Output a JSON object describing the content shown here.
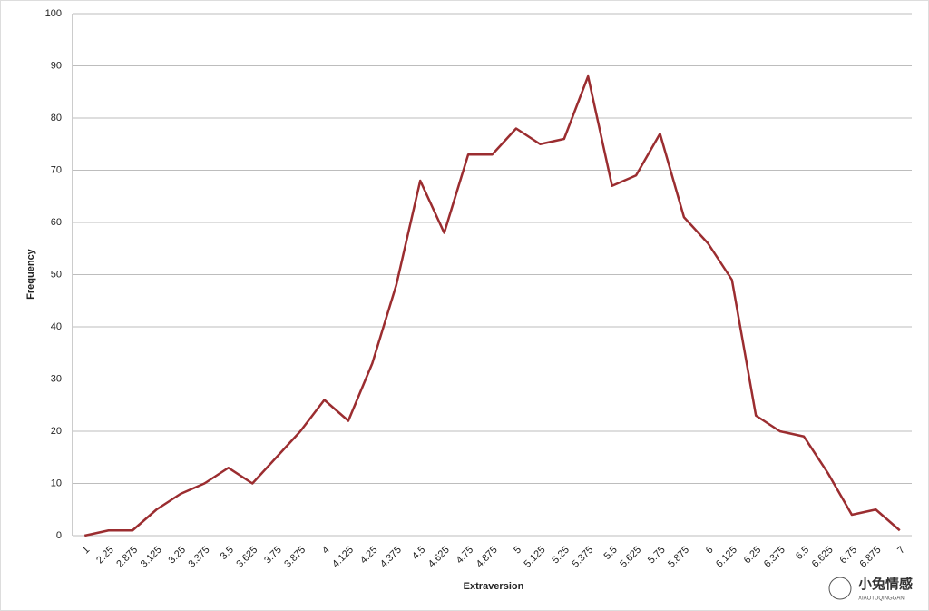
{
  "chart_data": {
    "type": "line",
    "x_label": "Extraversion",
    "y_label": "Frequency",
    "categories": [
      "1",
      "2.25",
      "2.875",
      "3.125",
      "3.25",
      "3.375",
      "3.5",
      "3.625",
      "3.75",
      "3.875",
      "4",
      "4.125",
      "4.25",
      "4.375",
      "4.5",
      "4.625",
      "4.75",
      "4.875",
      "5",
      "5.125",
      "5.25",
      "5.375",
      "5.5",
      "5.625",
      "5.75",
      "5.875",
      "6",
      "6.125",
      "6.25",
      "6.375",
      "6.5",
      "6.625",
      "6.75",
      "6.875",
      "7"
    ],
    "values": [
      0,
      1,
      1,
      5,
      8,
      10,
      13,
      10,
      15,
      20,
      26,
      22,
      33,
      48,
      68,
      58,
      73,
      73,
      78,
      75,
      76,
      88,
      67,
      69,
      77,
      61,
      56,
      49,
      23,
      20,
      19,
      12,
      4,
      5,
      1
    ],
    "color": "#9b2d30",
    "ylim": [
      0,
      100
    ],
    "yticks": [
      0,
      10,
      20,
      30,
      40,
      50,
      60,
      70,
      80,
      90,
      100
    ],
    "grid": true,
    "watermark": "小兔情感",
    "watermark_sub": "XIAOTUQINGGAN"
  }
}
